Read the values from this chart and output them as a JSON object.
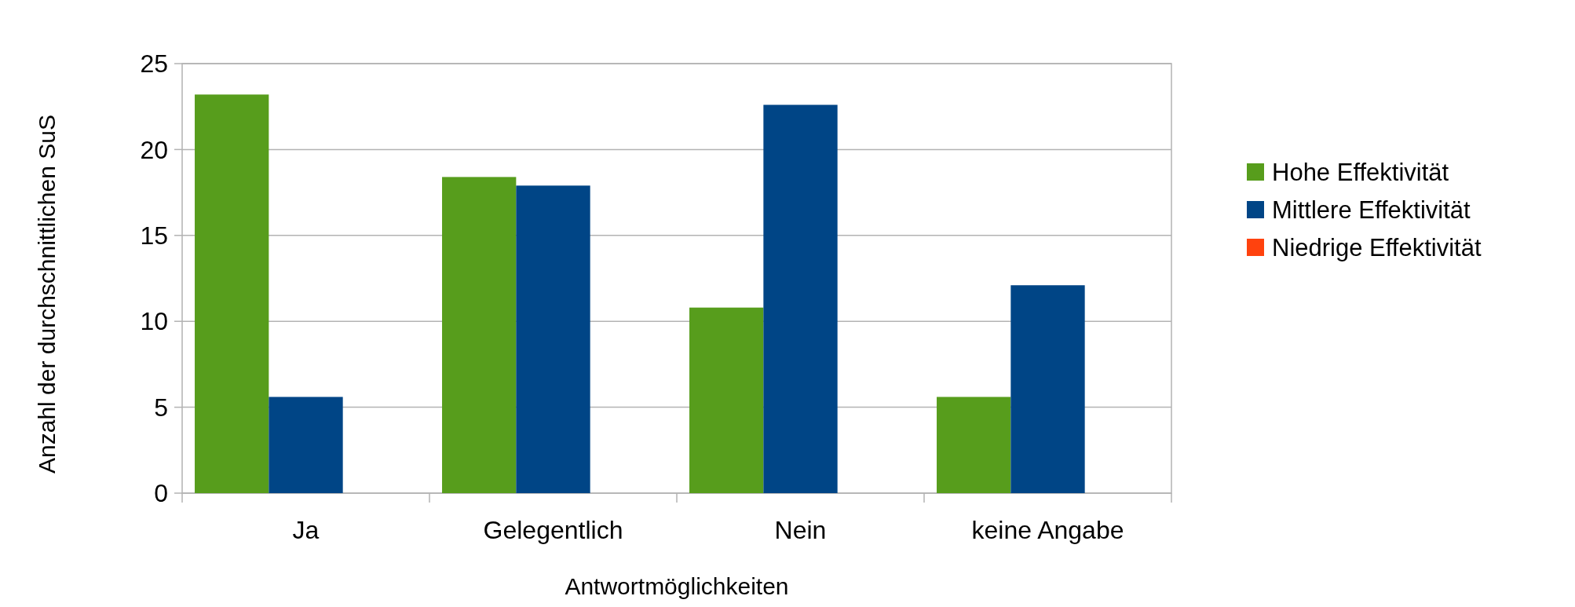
{
  "chart_data": {
    "type": "bar",
    "xlabel": "Antwortmöglichkeiten",
    "ylabel": "Anzahl der durchschnittlichen SuS",
    "categories": [
      "Ja",
      "Gelegentlich",
      "Nein",
      "keine Angabe"
    ],
    "series": [
      {
        "name": "Hohe Effektivität",
        "color": "#579d1c",
        "values": [
          23.2,
          18.4,
          10.8,
          5.6
        ]
      },
      {
        "name": "Mittlere Effektivität",
        "color": "#004586",
        "values": [
          5.6,
          17.9,
          22.6,
          12.1
        ]
      },
      {
        "name": "Niedrige Effektivität",
        "color": "#ff420e",
        "values": [
          0,
          0,
          0,
          0
        ]
      }
    ],
    "ylim": [
      0,
      25
    ],
    "yticks": [
      0,
      5,
      10,
      15,
      20,
      25
    ],
    "grid": "y",
    "legend": "right"
  }
}
